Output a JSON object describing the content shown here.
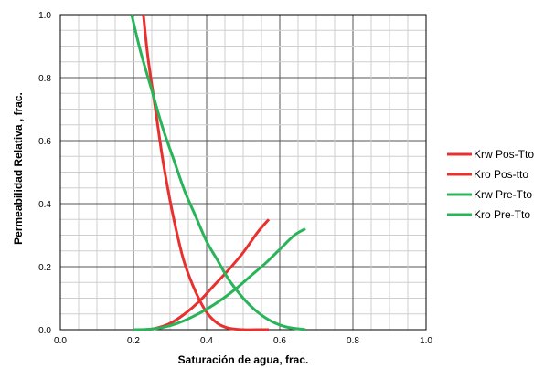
{
  "chart_data": {
    "type": "line",
    "xlabel": "Saturación de agua, frac.",
    "ylabel": "Permeabilidad Relativa , frac.",
    "xlim": [
      0.0,
      1.0
    ],
    "ylim": [
      0.0,
      1.0
    ],
    "xticks": [
      "0.0",
      "0.2",
      "0.4",
      "0.6",
      "0.8",
      "1.0"
    ],
    "yticks": [
      "0.0",
      "0.2",
      "0.4",
      "0.6",
      "0.8",
      "1.0"
    ],
    "grid": "major and minor",
    "legend_position": "right",
    "series": [
      {
        "name": "Krw Pos-Tto",
        "color": "#e8312f",
        "x": [
          0.23,
          0.26,
          0.3,
          0.34,
          0.38,
          0.42,
          0.46,
          0.5,
          0.54,
          0.57
        ],
        "y": [
          0.0,
          0.004,
          0.02,
          0.05,
          0.09,
          0.14,
          0.19,
          0.245,
          0.31,
          0.35
        ]
      },
      {
        "name": "Kro Pos-tto",
        "color": "#e8312f",
        "x": [
          0.227,
          0.24,
          0.26,
          0.28,
          0.3,
          0.32,
          0.34,
          0.37,
          0.4,
          0.43,
          0.46,
          0.5,
          0.55,
          0.57
        ],
        "y": [
          1.0,
          0.86,
          0.7,
          0.54,
          0.41,
          0.3,
          0.21,
          0.12,
          0.055,
          0.02,
          0.005,
          0.0,
          0.0,
          0.0
        ]
      },
      {
        "name": "Krw Pre-Tto",
        "color": "#29b45a",
        "x": [
          0.2,
          0.24,
          0.28,
          0.32,
          0.36,
          0.4,
          0.44,
          0.48,
          0.52,
          0.56,
          0.6,
          0.64,
          0.67
        ],
        "y": [
          0.0,
          0.001,
          0.007,
          0.02,
          0.04,
          0.065,
          0.095,
          0.13,
          0.17,
          0.21,
          0.255,
          0.3,
          0.32
        ]
      },
      {
        "name": "Kro Pre-Tto",
        "color": "#29b45a",
        "x": [
          0.195,
          0.22,
          0.25,
          0.28,
          0.31,
          0.34,
          0.37,
          0.4,
          0.43,
          0.46,
          0.5,
          0.54,
          0.58,
          0.62,
          0.67
        ],
        "y": [
          1.0,
          0.88,
          0.76,
          0.64,
          0.54,
          0.44,
          0.36,
          0.28,
          0.22,
          0.16,
          0.1,
          0.055,
          0.025,
          0.008,
          0.0
        ]
      }
    ]
  }
}
